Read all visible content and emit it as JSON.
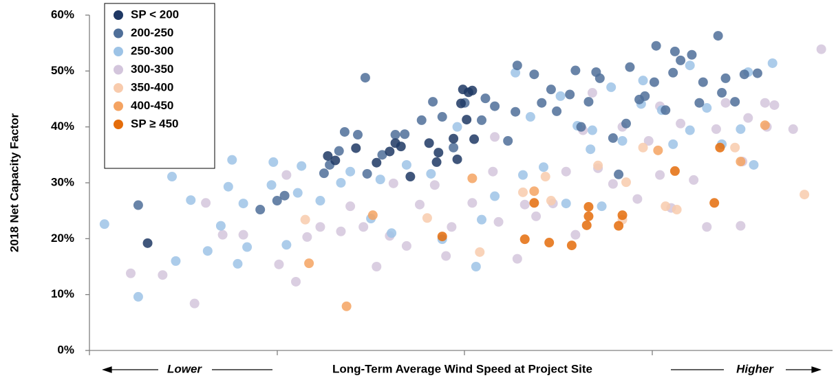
{
  "chart_data": {
    "type": "scatter",
    "xlabel": "Long-Term Average Wind Speed at Project Site",
    "ylabel": "2018 Net Capacity Factor",
    "annotations": [
      "Lower",
      "Higher"
    ],
    "xlim": [
      0,
      3.96
    ],
    "ylim": [
      0,
      60
    ],
    "yticks": [
      {
        "value": 0,
        "label": "0%"
      },
      {
        "value": 10,
        "label": "10%"
      },
      {
        "value": 20,
        "label": "20%"
      },
      {
        "value": 30,
        "label": "30%"
      },
      {
        "value": 40,
        "label": "40%"
      },
      {
        "value": 50,
        "label": "50%"
      },
      {
        "value": 60,
        "label": "60%"
      }
    ],
    "grid": false,
    "legend": "upper left",
    "series": [
      {
        "name": "300-350",
        "color": "#d3c5dc",
        "x": [
          0.22,
          0.39,
          0.56,
          0.62,
          0.71,
          0.82,
          1.01,
          1.05,
          1.1,
          1.16,
          1.23,
          1.34,
          1.39,
          1.46,
          1.53,
          1.6,
          1.62,
          1.69,
          1.76,
          1.84,
          1.9,
          1.93,
          2.04,
          2.15,
          2.18,
          2.28,
          2.32,
          2.38,
          2.47,
          2.54,
          2.59,
          2.63,
          2.71,
          2.79,
          2.84,
          2.92,
          2.98,
          3.04,
          3.1,
          3.15,
          3.22,
          3.29,
          3.34,
          3.39,
          3.48,
          3.51,
          3.6,
          3.61,
          3.65,
          3.75,
          3.9,
          3.47,
          2.16,
          2.68,
          3.04
        ],
        "values": [
          13.8,
          13.5,
          8.4,
          26.4,
          20.7,
          20.7,
          15.4,
          31.4,
          12.3,
          20.3,
          22.1,
          21.3,
          25.8,
          22.1,
          15,
          20.5,
          29.9,
          18.7,
          26.1,
          29.6,
          16.9,
          22.1,
          26.4,
          32,
          23,
          16.4,
          26.1,
          24,
          26.3,
          32,
          20.7,
          39.4,
          32.6,
          29.8,
          40,
          27.1,
          37.5,
          43.7,
          25.5,
          40.6,
          30.5,
          22.1,
          39.6,
          44.3,
          33.8,
          41.6,
          44.3,
          40,
          43.9,
          39.6,
          53.9,
          22.3,
          38.2,
          46.1,
          31.4
        ]
      },
      {
        "name": "250-300",
        "color": "#9dc3e6",
        "x": [
          0.08,
          0.26,
          0.44,
          0.46,
          0.54,
          0.63,
          0.7,
          0.74,
          0.76,
          0.79,
          0.82,
          0.84,
          0.97,
          0.98,
          1.05,
          1.11,
          1.13,
          1.23,
          1.34,
          1.39,
          1.5,
          1.55,
          1.61,
          1.69,
          1.82,
          1.88,
          1.96,
          2.06,
          2.09,
          2.16,
          2.27,
          2.31,
          2.35,
          2.42,
          2.51,
          2.54,
          2.6,
          2.67,
          2.73,
          2.78,
          2.84,
          2.95,
          3.05,
          3.2,
          3.29,
          3.37,
          3.47,
          3.51,
          3.54,
          3.64,
          3.2,
          3.11,
          2.94,
          2.68
        ],
        "values": [
          22.6,
          9.6,
          31.1,
          16,
          26.9,
          17.8,
          22.3,
          29.3,
          34.1,
          15.5,
          26.3,
          18.5,
          29.6,
          33.7,
          18.9,
          28.2,
          33,
          26.8,
          30,
          32,
          23.6,
          30.6,
          21,
          33.2,
          31.6,
          19.9,
          40,
          15,
          23.4,
          27.6,
          49.7,
          31.4,
          41.8,
          32.8,
          45.5,
          26.3,
          40.2,
          36,
          25.8,
          47.1,
          37.5,
          48.3,
          43,
          39.4,
          43.4,
          36.9,
          39.6,
          49.8,
          33.2,
          51.4,
          51,
          36.9,
          44.1,
          39.4
        ]
      },
      {
        "name": "200-250",
        "color": "#4f6f99",
        "x": [
          0.26,
          0.91,
          1.0,
          1.04,
          1.25,
          1.28,
          1.33,
          1.36,
          1.47,
          1.48,
          1.56,
          1.63,
          1.68,
          1.83,
          1.88,
          1.94,
          2.0,
          2.09,
          2.11,
          2.16,
          2.27,
          2.28,
          2.37,
          2.41,
          2.46,
          2.49,
          2.56,
          2.59,
          2.66,
          2.7,
          2.72,
          2.79,
          2.82,
          2.88,
          2.93,
          2.96,
          3.02,
          3.07,
          3.11,
          3.12,
          3.15,
          3.21,
          3.25,
          3.27,
          3.35,
          3.39,
          3.44,
          3.49,
          3.56,
          3.37,
          3.01,
          2.86,
          2.62,
          2.23,
          1.77,
          1.43
        ],
        "values": [
          26,
          25.2,
          26.8,
          27.7,
          31.7,
          33.2,
          35.7,
          39.1,
          48.8,
          31.6,
          35,
          38.6,
          38.7,
          44.5,
          41.8,
          36.3,
          44.3,
          41.2,
          45.1,
          43.7,
          42.7,
          51,
          49.4,
          44.3,
          46.7,
          42.8,
          45.8,
          50.1,
          44.5,
          49.8,
          48.7,
          38,
          31.5,
          50.7,
          44.9,
          45.5,
          54.5,
          43,
          49.7,
          53.5,
          51.9,
          52.9,
          44.3,
          48,
          56.3,
          48.7,
          44.5,
          49.4,
          49.6,
          46.1,
          48,
          40.6,
          40,
          37.5,
          41.2,
          38.6
        ]
      },
      {
        "name": "SP < 200",
        "color": "#1f3864",
        "x": [
          0.31,
          1.27,
          1.31,
          1.42,
          1.53,
          1.6,
          1.63,
          1.66,
          1.71,
          1.81,
          1.85,
          1.86,
          1.94,
          1.96,
          1.98,
          1.99,
          2.01,
          2.02,
          2.04,
          2.05
        ],
        "values": [
          19.2,
          34.8,
          34,
          36.2,
          33.6,
          35.6,
          37.1,
          36.5,
          31.1,
          37.1,
          33.7,
          35.4,
          37.9,
          34.2,
          44.2,
          46.7,
          41.3,
          46.2,
          46.5,
          37.8
        ]
      },
      {
        "name": "350-400",
        "color": "#f8cbad",
        "x": [
          1.15,
          1.8,
          2.08,
          2.31,
          2.43,
          2.46,
          2.71,
          2.84,
          2.86,
          2.95,
          3.07,
          3.13,
          3.44,
          3.81
        ],
        "values": [
          23.4,
          23.7,
          17.6,
          28.3,
          31.1,
          26.8,
          33.1,
          23.4,
          30.1,
          36.3,
          25.8,
          25.2,
          36.3,
          27.9
        ]
      },
      {
        "name": "400-450",
        "color": "#f4a362",
        "x": [
          1.17,
          1.37,
          1.51,
          2.04,
          2.37,
          3.03,
          3.47,
          3.6
        ],
        "values": [
          15.6,
          7.9,
          24.2,
          30.8,
          28.5,
          35.8,
          33.8,
          40.3
        ]
      },
      {
        "name": "SP ≥ 450",
        "color": "#e46c0a",
        "x": [
          1.88,
          2.32,
          2.37,
          2.45,
          2.57,
          2.65,
          2.66,
          2.66,
          2.82,
          2.84,
          3.12,
          3.33,
          3.36
        ],
        "values": [
          20.4,
          19.9,
          26.4,
          19.3,
          18.8,
          22.4,
          25.7,
          24,
          22.3,
          24.2,
          32.1,
          26.4,
          36.3
        ]
      }
    ]
  }
}
